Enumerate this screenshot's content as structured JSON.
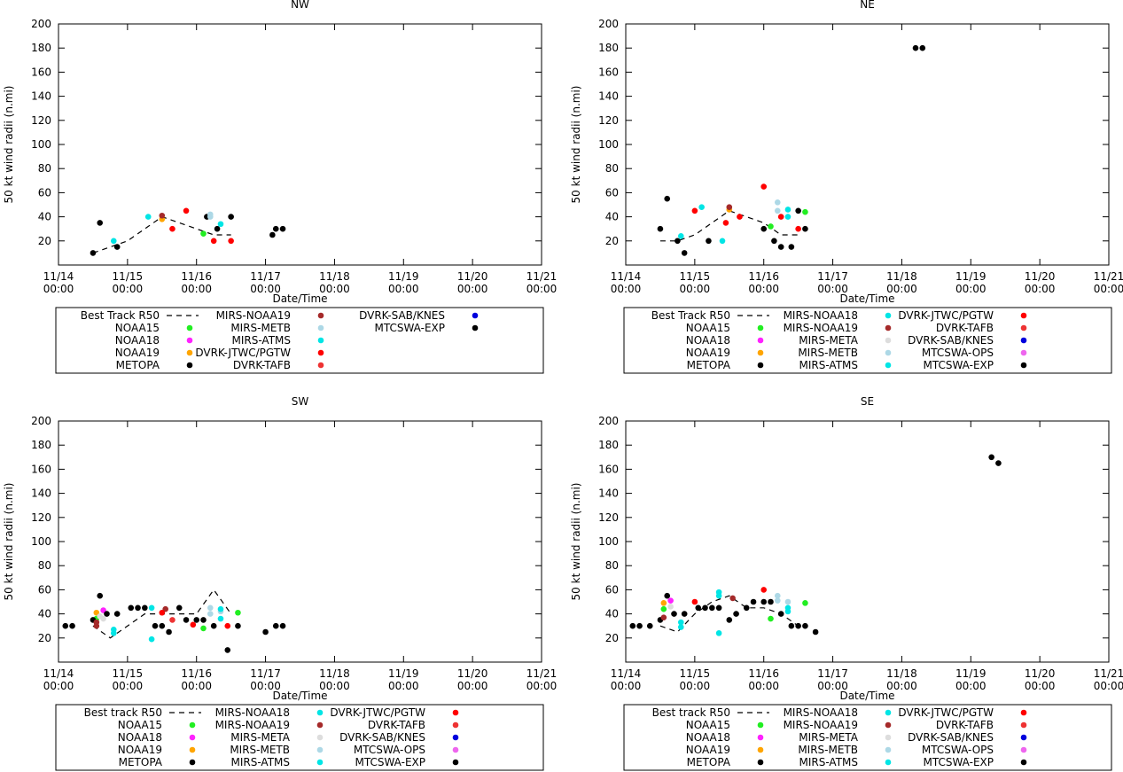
{
  "chart_data": [
    {
      "type": "scatter",
      "title": "NW",
      "xlabel": "Date/Time",
      "ylabel": "50 kt wind radii (n.mi)",
      "xlim": [
        0,
        7
      ],
      "ylim": [
        0,
        200
      ],
      "y_ticks": [
        20,
        40,
        60,
        80,
        100,
        120,
        140,
        160,
        180,
        200
      ],
      "x_ticks": [
        {
          "d": "11/14",
          "t": "00:00"
        },
        {
          "d": "11/15",
          "t": "00:00"
        },
        {
          "d": "11/16",
          "t": "00:00"
        },
        {
          "d": "11/17",
          "t": "00:00"
        },
        {
          "d": "11/18",
          "t": "00:00"
        },
        {
          "d": "11/19",
          "t": "00:00"
        },
        {
          "d": "11/20",
          "t": "00:00"
        },
        {
          "d": "11/21",
          "t": "00:00"
        }
      ],
      "best_track": {
        "name": "Best Track R50",
        "x": [
          0.5,
          0.75,
          1.0,
          1.25,
          1.5,
          1.75,
          2.0,
          2.25,
          2.5
        ],
        "y": [
          10,
          15,
          20,
          30,
          40,
          35,
          30,
          25,
          25
        ]
      },
      "legend": {
        "columns": [
          [
            "Best Track R50",
            "NOAA15",
            "NOAA18",
            "NOAA19",
            "METOPA"
          ],
          [
            "MIRS-NOAA19",
            "MIRS-METB",
            "MIRS-ATMS",
            "DVRK-JTWC/PGTW",
            "DVRK-TAFB"
          ],
          [
            "DVRK-SAB/KNES",
            "MTCSWA-EXP"
          ]
        ]
      },
      "series": [
        {
          "name": "Best Track R50",
          "color": "#000000",
          "style": "dash"
        },
        {
          "name": "NOAA15",
          "color": "#22ee22",
          "x": [
            2.1
          ],
          "y": [
            26
          ]
        },
        {
          "name": "NOAA18",
          "color": "#ff22ff",
          "x": [],
          "y": []
        },
        {
          "name": "NOAA19",
          "color": "#ffa500",
          "x": [
            1.5
          ],
          "y": [
            38
          ]
        },
        {
          "name": "METOPA",
          "color": "#000000",
          "x": [
            0.5,
            0.6,
            0.85,
            2.15,
            2.3,
            2.5,
            3.1
          ],
          "y": [
            10,
            35,
            15,
            40,
            30,
            40,
            25
          ]
        },
        {
          "name": "MIRS-NOAA19",
          "color": "#a52a2a",
          "x": [
            1.5
          ],
          "y": [
            41
          ]
        },
        {
          "name": "MIRS-METB",
          "color": "#add8e6",
          "x": [
            2.2,
            2.2
          ],
          "y": [
            40,
            42
          ]
        },
        {
          "name": "MIRS-ATMS",
          "color": "#00e5e5",
          "x": [
            0.8,
            1.3,
            2.35
          ],
          "y": [
            20,
            40,
            34
          ]
        },
        {
          "name": "DVRK-JTWC/PGTW",
          "color": "#ff0000",
          "x": [
            1.65,
            1.85,
            2.25,
            2.5
          ],
          "y": [
            30,
            45,
            20,
            20
          ]
        },
        {
          "name": "DVRK-TAFB",
          "color": "#ee3333",
          "x": [],
          "y": []
        },
        {
          "name": "DVRK-SAB/KNES",
          "color": "#0000dd",
          "x": [],
          "y": []
        },
        {
          "name": "MTCSWA-EXP",
          "color": "#000000",
          "x": [
            3.15,
            3.25
          ],
          "y": [
            30,
            30
          ]
        }
      ]
    },
    {
      "type": "scatter",
      "title": "NE",
      "xlabel": "Date/Time",
      "ylabel": "50 kt wind radii (n.mi)",
      "xlim": [
        0,
        7
      ],
      "ylim": [
        0,
        200
      ],
      "y_ticks": [
        20,
        40,
        60,
        80,
        100,
        120,
        140,
        160,
        180,
        200
      ],
      "x_ticks": [
        {
          "d": "11/14",
          "t": "00:00"
        },
        {
          "d": "11/15",
          "t": "00:00"
        },
        {
          "d": "11/16",
          "t": "00:00"
        },
        {
          "d": "11/17",
          "t": "00:00"
        },
        {
          "d": "11/18",
          "t": "00:00"
        },
        {
          "d": "11/19",
          "t": "00:00"
        },
        {
          "d": "11/20",
          "t": "00:00"
        },
        {
          "d": "11/21",
          "t": "00:00"
        }
      ],
      "best_track": {
        "name": "Best Track R50",
        "x": [
          0.5,
          0.75,
          1.0,
          1.25,
          1.5,
          1.75,
          2.0,
          2.25,
          2.5
        ],
        "y": [
          20,
          20,
          25,
          35,
          45,
          40,
          35,
          25,
          25
        ]
      },
      "legend": {
        "columns": [
          [
            "Best Track R50",
            "NOAA15",
            "NOAA18",
            "NOAA19",
            "METOPA"
          ],
          [
            "MIRS-NOAA18",
            "MIRS-NOAA19",
            "MIRS-META",
            "MIRS-METB",
            "MIRS-ATMS"
          ],
          [
            "DVRK-JTWC/PGTW",
            "DVRK-TAFB",
            "DVRK-SAB/KNES",
            "MTCSWA-OPS",
            "MTCSWA-EXP"
          ]
        ]
      },
      "series": [
        {
          "name": "Best Track R50",
          "color": "#000000",
          "style": "dash"
        },
        {
          "name": "NOAA15",
          "color": "#22ee22",
          "x": [
            2.1,
            2.6
          ],
          "y": [
            32,
            44
          ]
        },
        {
          "name": "NOAA18",
          "color": "#ff22ff",
          "x": [],
          "y": []
        },
        {
          "name": "NOAA19",
          "color": "#ffa500",
          "x": [
            1.5
          ],
          "y": [
            46
          ]
        },
        {
          "name": "METOPA",
          "color": "#000000",
          "x": [
            0.5,
            0.6,
            0.75,
            0.85,
            1.2,
            2.0,
            2.15,
            2.25,
            2.4,
            2.5,
            2.6
          ],
          "y": [
            30,
            55,
            20,
            10,
            20,
            30,
            20,
            15,
            15,
            45,
            30
          ]
        },
        {
          "name": "MIRS-NOAA18",
          "color": "#00e5e5",
          "x": [
            1.1
          ],
          "y": [
            48
          ]
        },
        {
          "name": "MIRS-NOAA19",
          "color": "#a52a2a",
          "x": [
            1.5
          ],
          "y": [
            48
          ]
        },
        {
          "name": "MIRS-META",
          "color": "#dddddd",
          "x": [],
          "y": []
        },
        {
          "name": "MIRS-METB",
          "color": "#add8e6",
          "x": [
            2.2,
            2.2
          ],
          "y": [
            45,
            52
          ]
        },
        {
          "name": "MIRS-ATMS",
          "color": "#00e5e5",
          "x": [
            0.8,
            1.4,
            2.35,
            2.35
          ],
          "y": [
            24,
            20,
            40,
            46
          ]
        },
        {
          "name": "DVRK-JTWC/PGTW",
          "color": "#ff0000",
          "x": [
            1.0,
            1.45,
            1.65,
            2.0,
            2.25,
            2.5
          ],
          "y": [
            45,
            35,
            40,
            65,
            40,
            30
          ]
        },
        {
          "name": "DVRK-TAFB",
          "color": "#ee3333",
          "x": [],
          "y": []
        },
        {
          "name": "DVRK-SAB/KNES",
          "color": "#0000dd",
          "x": [],
          "y": []
        },
        {
          "name": "MTCSWA-OPS",
          "color": "#ee66ee",
          "x": [],
          "y": []
        },
        {
          "name": "MTCSWA-EXP",
          "color": "#000000",
          "x": [
            4.2,
            4.3
          ],
          "y": [
            180,
            180
          ]
        }
      ]
    },
    {
      "type": "scatter",
      "title": "SW",
      "xlabel": "Date/Time",
      "ylabel": "50 kt wind radii (n.mi)",
      "xlim": [
        0,
        7
      ],
      "ylim": [
        0,
        200
      ],
      "y_ticks": [
        20,
        40,
        60,
        80,
        100,
        120,
        140,
        160,
        180,
        200
      ],
      "x_ticks": [
        {
          "d": "11/14",
          "t": "00:00"
        },
        {
          "d": "11/15",
          "t": "00:00"
        },
        {
          "d": "11/16",
          "t": "00:00"
        },
        {
          "d": "11/17",
          "t": "00:00"
        },
        {
          "d": "11/18",
          "t": "00:00"
        },
        {
          "d": "11/19",
          "t": "00:00"
        },
        {
          "d": "11/20",
          "t": "00:00"
        },
        {
          "d": "11/21",
          "t": "00:00"
        }
      ],
      "best_track": {
        "name": "Best track R50",
        "x": [
          0.5,
          0.75,
          1.0,
          1.25,
          1.5,
          1.75,
          2.0,
          2.25,
          2.5
        ],
        "y": [
          30,
          20,
          30,
          40,
          40,
          40,
          40,
          60,
          40
        ]
      },
      "legend": {
        "columns": [
          [
            "Best track R50",
            "NOAA15",
            "NOAA18",
            "NOAA19",
            "METOPA"
          ],
          [
            "MIRS-NOAA18",
            "MIRS-NOAA19",
            "MIRS-META",
            "MIRS-METB",
            "MIRS-ATMS"
          ],
          [
            "DVRK-JTWC/PGTW",
            "DVRK-TAFB",
            "DVRK-SAB/KNES",
            "MTCSWA-OPS",
            "MTCSWA-EXP"
          ]
        ]
      },
      "series": [
        {
          "name": "Best track R50",
          "color": "#000000",
          "style": "dash"
        },
        {
          "name": "NOAA15",
          "color": "#22ee22",
          "x": [
            0.55,
            2.1,
            2.6
          ],
          "y": [
            36,
            28,
            41
          ]
        },
        {
          "name": "NOAA18",
          "color": "#ff22ff",
          "x": [
            0.65
          ],
          "y": [
            43
          ]
        },
        {
          "name": "NOAA19",
          "color": "#ffa500",
          "x": [
            0.55
          ],
          "y": [
            41
          ]
        },
        {
          "name": "METOPA",
          "color": "#000000",
          "x": [
            0.1,
            0.2,
            0.5,
            0.6,
            0.7,
            0.85,
            1.05,
            1.15,
            1.25,
            1.4,
            1.5,
            1.6,
            1.75,
            1.85,
            2.0,
            2.1,
            2.25,
            2.45,
            2.6
          ],
          "y": [
            30,
            30,
            35,
            55,
            40,
            40,
            45,
            45,
            45,
            30,
            30,
            25,
            45,
            35,
            35,
            35,
            30,
            10,
            30
          ]
        },
        {
          "name": "MIRS-NOAA18",
          "color": "#00e5e5",
          "x": [
            1.35
          ],
          "y": [
            45
          ]
        },
        {
          "name": "MIRS-NOAA19",
          "color": "#a52a2a",
          "x": [
            0.55,
            0.55,
            1.55
          ],
          "y": [
            30,
            33,
            44
          ]
        },
        {
          "name": "MIRS-META",
          "color": "#dddddd",
          "x": [
            0.6,
            0.65
          ],
          "y": [
            38,
            36
          ]
        },
        {
          "name": "MIRS-METB",
          "color": "#add8e6",
          "x": [
            2.2,
            2.2,
            2.35
          ],
          "y": [
            40,
            45,
            42
          ]
        },
        {
          "name": "MIRS-ATMS",
          "color": "#00e5e5",
          "x": [
            0.8,
            0.8,
            1.35,
            2.35,
            2.35
          ],
          "y": [
            24,
            27,
            19,
            36,
            44
          ]
        },
        {
          "name": "DVRK-JTWC/PGTW",
          "color": "#ff0000",
          "x": [
            1.5,
            1.95,
            2.45
          ],
          "y": [
            41,
            31,
            30
          ]
        },
        {
          "name": "DVRK-TAFB",
          "color": "#ee3333",
          "x": [
            1.65
          ],
          "y": [
            35
          ]
        },
        {
          "name": "DVRK-SAB/KNES",
          "color": "#0000dd",
          "x": [],
          "y": []
        },
        {
          "name": "MTCSWA-OPS",
          "color": "#ee66ee",
          "x": [],
          "y": []
        },
        {
          "name": "MTCSWA-EXP",
          "color": "#000000",
          "x": [
            3.0,
            3.15,
            3.25
          ],
          "y": [
            25,
            30,
            30
          ]
        }
      ]
    },
    {
      "type": "scatter",
      "title": "SE",
      "xlabel": "Date/Time",
      "ylabel": "50 kt wind radii (n.mi)",
      "xlim": [
        0,
        7
      ],
      "ylim": [
        0,
        200
      ],
      "y_ticks": [
        20,
        40,
        60,
        80,
        100,
        120,
        140,
        160,
        180,
        200
      ],
      "x_ticks": [
        {
          "d": "11/14",
          "t": "00:00"
        },
        {
          "d": "11/15",
          "t": "00:00"
        },
        {
          "d": "11/16",
          "t": "00:00"
        },
        {
          "d": "11/17",
          "t": "00:00"
        },
        {
          "d": "11/18",
          "t": "00:00"
        },
        {
          "d": "11/19",
          "t": "00:00"
        },
        {
          "d": "11/20",
          "t": "00:00"
        },
        {
          "d": "11/21",
          "t": "00:00"
        }
      ],
      "best_track": {
        "name": "Best track R50",
        "x": [
          0.5,
          0.75,
          1.0,
          1.25,
          1.5,
          1.75,
          2.0,
          2.25,
          2.5
        ],
        "y": [
          30,
          25,
          40,
          50,
          55,
          45,
          45,
          40,
          30
        ]
      },
      "legend": {
        "columns": [
          [
            "Best track R50",
            "NOAA15",
            "NOAA18",
            "NOAA19",
            "METOPA"
          ],
          [
            "MIRS-NOAA18",
            "MIRS-NOAA19",
            "MIRS-META",
            "MIRS-METB",
            "MIRS-ATMS"
          ],
          [
            "DVRK-JTWC/PGTW",
            "DVRK-TAFB",
            "DVRK-SAB/KNES",
            "MTCSWA-OPS",
            "MTCSWA-EXP"
          ]
        ]
      },
      "series": [
        {
          "name": "Best track R50",
          "color": "#000000",
          "style": "dash"
        },
        {
          "name": "NOAA15",
          "color": "#22ee22",
          "x": [
            0.55,
            2.1,
            2.6
          ],
          "y": [
            44,
            36,
            49
          ]
        },
        {
          "name": "NOAA18",
          "color": "#ff22ff",
          "x": [
            0.65
          ],
          "y": [
            51
          ]
        },
        {
          "name": "NOAA19",
          "color": "#ffa500",
          "x": [
            0.55
          ],
          "y": [
            49
          ]
        },
        {
          "name": "METOPA",
          "color": "#000000",
          "x": [
            0.1,
            0.2,
            0.35,
            0.5,
            0.6,
            0.7,
            0.85,
            1.05,
            1.15,
            1.25,
            1.35,
            1.5,
            1.6,
            1.75,
            1.85,
            2.0,
            2.1,
            2.25,
            2.4,
            2.5,
            2.6,
            2.75
          ],
          "y": [
            30,
            30,
            30,
            35,
            55,
            40,
            40,
            45,
            45,
            45,
            45,
            35,
            40,
            45,
            50,
            50,
            50,
            40,
            30,
            30,
            30,
            25
          ]
        },
        {
          "name": "MIRS-NOAA18",
          "color": "#00e5e5",
          "x": [
            1.35
          ],
          "y": [
            55
          ]
        },
        {
          "name": "MIRS-NOAA19",
          "color": "#a52a2a",
          "x": [
            0.55,
            1.55
          ],
          "y": [
            37,
            53
          ]
        },
        {
          "name": "MIRS-META",
          "color": "#dddddd",
          "x": [
            0.65
          ],
          "y": [
            46
          ]
        },
        {
          "name": "MIRS-METB",
          "color": "#add8e6",
          "x": [
            2.2,
            2.2,
            2.35
          ],
          "y": [
            51,
            55,
            50
          ]
        },
        {
          "name": "MIRS-ATMS",
          "color": "#00e5e5",
          "x": [
            0.8,
            0.8,
            1.35,
            1.35,
            2.35,
            2.35
          ],
          "y": [
            29,
            33,
            24,
            58,
            42,
            45
          ]
        },
        {
          "name": "DVRK-JTWC/PGTW",
          "color": "#ff0000",
          "x": [
            1.0,
            2.0
          ],
          "y": [
            50,
            60
          ]
        },
        {
          "name": "DVRK-TAFB",
          "color": "#ee3333",
          "x": [],
          "y": []
        },
        {
          "name": "DVRK-SAB/KNES",
          "color": "#0000dd",
          "x": [],
          "y": []
        },
        {
          "name": "MTCSWA-OPS",
          "color": "#ee66ee",
          "x": [],
          "y": []
        },
        {
          "name": "MTCSWA-EXP",
          "color": "#000000",
          "x": [
            5.3,
            5.4
          ],
          "y": [
            170,
            165
          ]
        }
      ]
    }
  ]
}
